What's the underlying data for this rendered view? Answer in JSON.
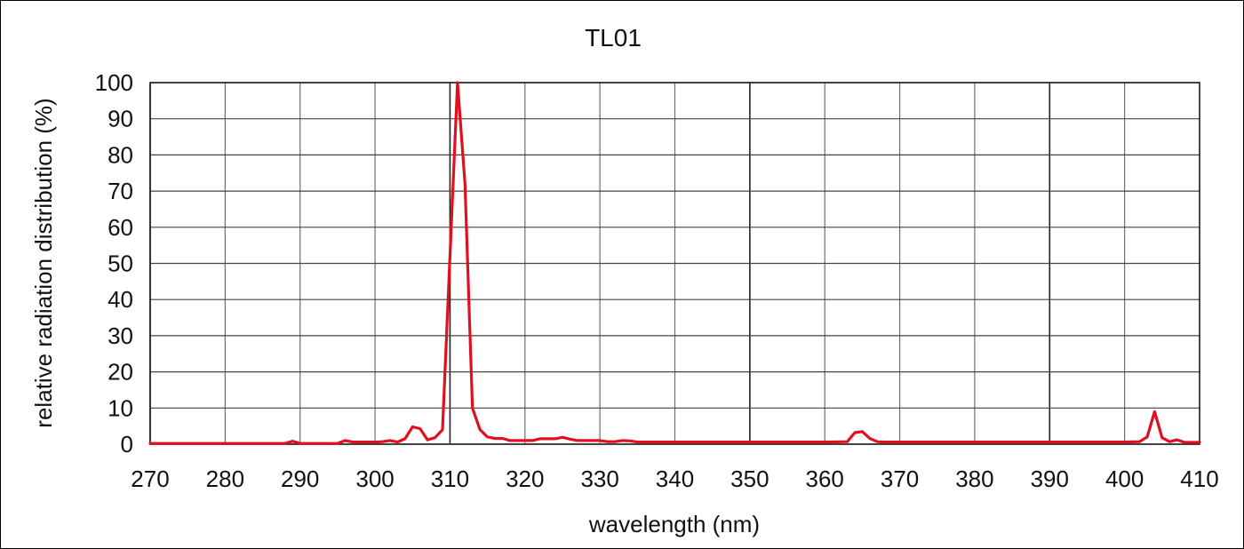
{
  "chart_data": {
    "type": "line",
    "title": "TL01",
    "xlabel": "wavelength (nm)",
    "ylabel": "relative radiation distribution (%)",
    "xlim": [
      270,
      410
    ],
    "ylim": [
      0,
      100
    ],
    "x_ticks": [
      270,
      280,
      290,
      300,
      310,
      320,
      330,
      340,
      350,
      360,
      370,
      380,
      390,
      400,
      410
    ],
    "y_ticks": [
      0,
      10,
      20,
      30,
      40,
      50,
      60,
      70,
      80,
      90,
      100
    ],
    "grid": true,
    "legend": "none",
    "series": [
      {
        "color": "#e0101e",
        "x": [
          270,
          288,
          289,
          290,
          295,
          296,
          297,
          300,
          301,
          302,
          303,
          304,
          305,
          306,
          307,
          308,
          309,
          310,
          311,
          312,
          313,
          314,
          315,
          316,
          317,
          318,
          320,
          321,
          322,
          324,
          325,
          326,
          327,
          330,
          331,
          332,
          333,
          334,
          335,
          340,
          350,
          360,
          363,
          364,
          365,
          366,
          367,
          368,
          370,
          380,
          390,
          400,
          402,
          403,
          404,
          405,
          406,
          407,
          408,
          409,
          410
        ],
        "y": [
          0.2,
          0.2,
          0.8,
          0.2,
          0.2,
          1.0,
          0.6,
          0.6,
          0.7,
          1.0,
          0.6,
          1.5,
          4.8,
          4.3,
          1.2,
          1.8,
          4.0,
          52,
          100,
          72,
          10,
          4,
          2.0,
          1.6,
          1.6,
          1.0,
          1.0,
          1.0,
          1.5,
          1.5,
          1.9,
          1.4,
          1.0,
          1.0,
          0.7,
          0.7,
          1.0,
          0.9,
          0.6,
          0.6,
          0.6,
          0.6,
          0.7,
          3.2,
          3.5,
          1.6,
          0.7,
          0.6,
          0.6,
          0.6,
          0.6,
          0.6,
          0.7,
          2.0,
          9.0,
          1.8,
          0.7,
          1.2,
          0.5,
          0.5,
          0.5
        ]
      }
    ]
  }
}
